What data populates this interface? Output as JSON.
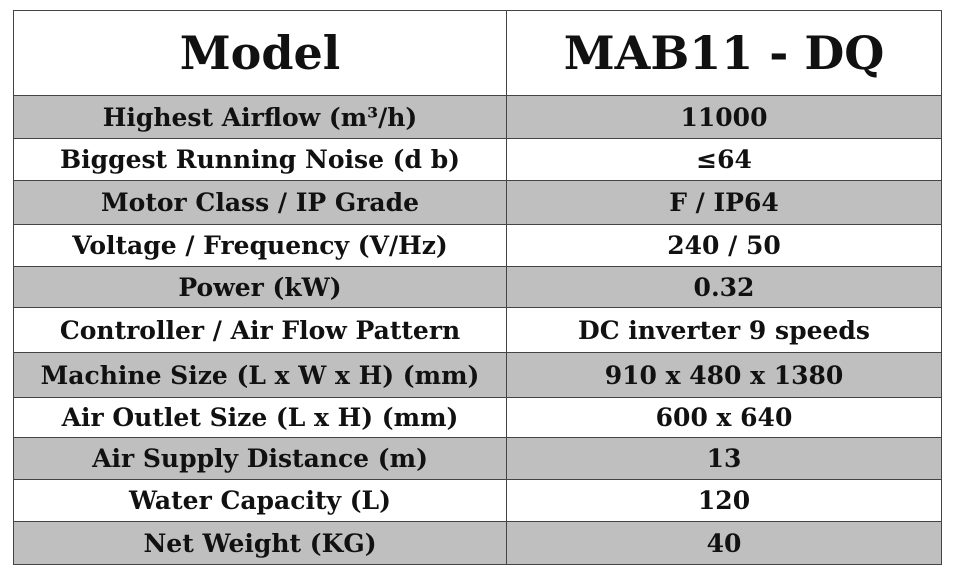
{
  "table": {
    "header": [
      "Model",
      "MAB11 - DQ"
    ],
    "rows": [
      [
        "Highest Airflow (m³/h)",
        "11000"
      ],
      [
        "Biggest Running Noise (d b)",
        "≤64"
      ],
      [
        "Motor Class / IP Grade",
        "F / IP64"
      ],
      [
        "Voltage / Frequency (V/Hz)",
        "240 / 50"
      ],
      [
        "Power (kW)",
        "0.32"
      ],
      [
        "Controller / Air Flow Pattern",
        "DC inverter 9 speeds"
      ],
      [
        "Machine Size (L x W x H) (mm)",
        "910 x 480 x 1380"
      ],
      [
        "Air Outlet Size (L x H) (mm)",
        "600 x 640"
      ],
      [
        "Air Supply Distance (m)",
        "13"
      ],
      [
        "Water Capacity (L)",
        "120"
      ],
      [
        "Net Weight (KG)",
        "40"
      ]
    ]
  }
}
